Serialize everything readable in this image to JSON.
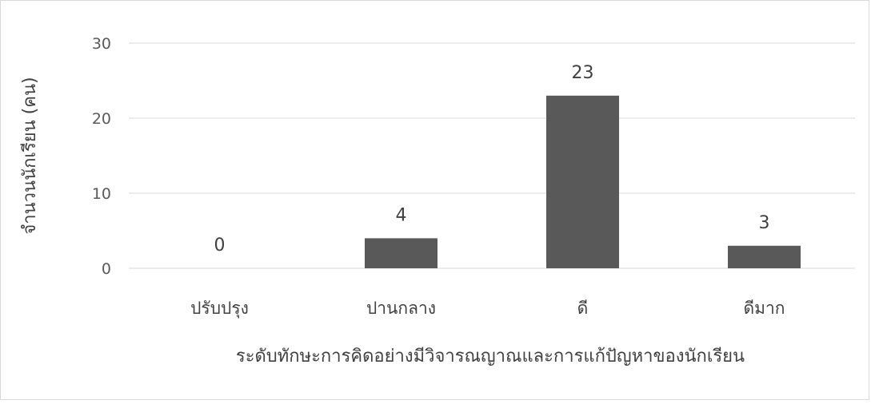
{
  "chart_data": {
    "type": "bar",
    "categories": [
      "ปรับปรุง",
      "ปานกลาง",
      "ดี",
      "ดีมาก"
    ],
    "values": [
      0,
      4,
      23,
      3
    ],
    "data_labels": [
      "0",
      "4",
      "23",
      "3"
    ],
    "xlabel": "ระดับทักษะการคิดอย่างมีวิจารณญาณและการแก้ปัญหาของนักเรียน",
    "ylabel": "จำนวนนักเรียน (คน)",
    "ylim": [
      0,
      30
    ],
    "yticks": [
      "0",
      "10",
      "20",
      "30"
    ],
    "grid": true,
    "legend": "none",
    "bar_color": "#595959",
    "grid_color": "#d9d9d9"
  }
}
